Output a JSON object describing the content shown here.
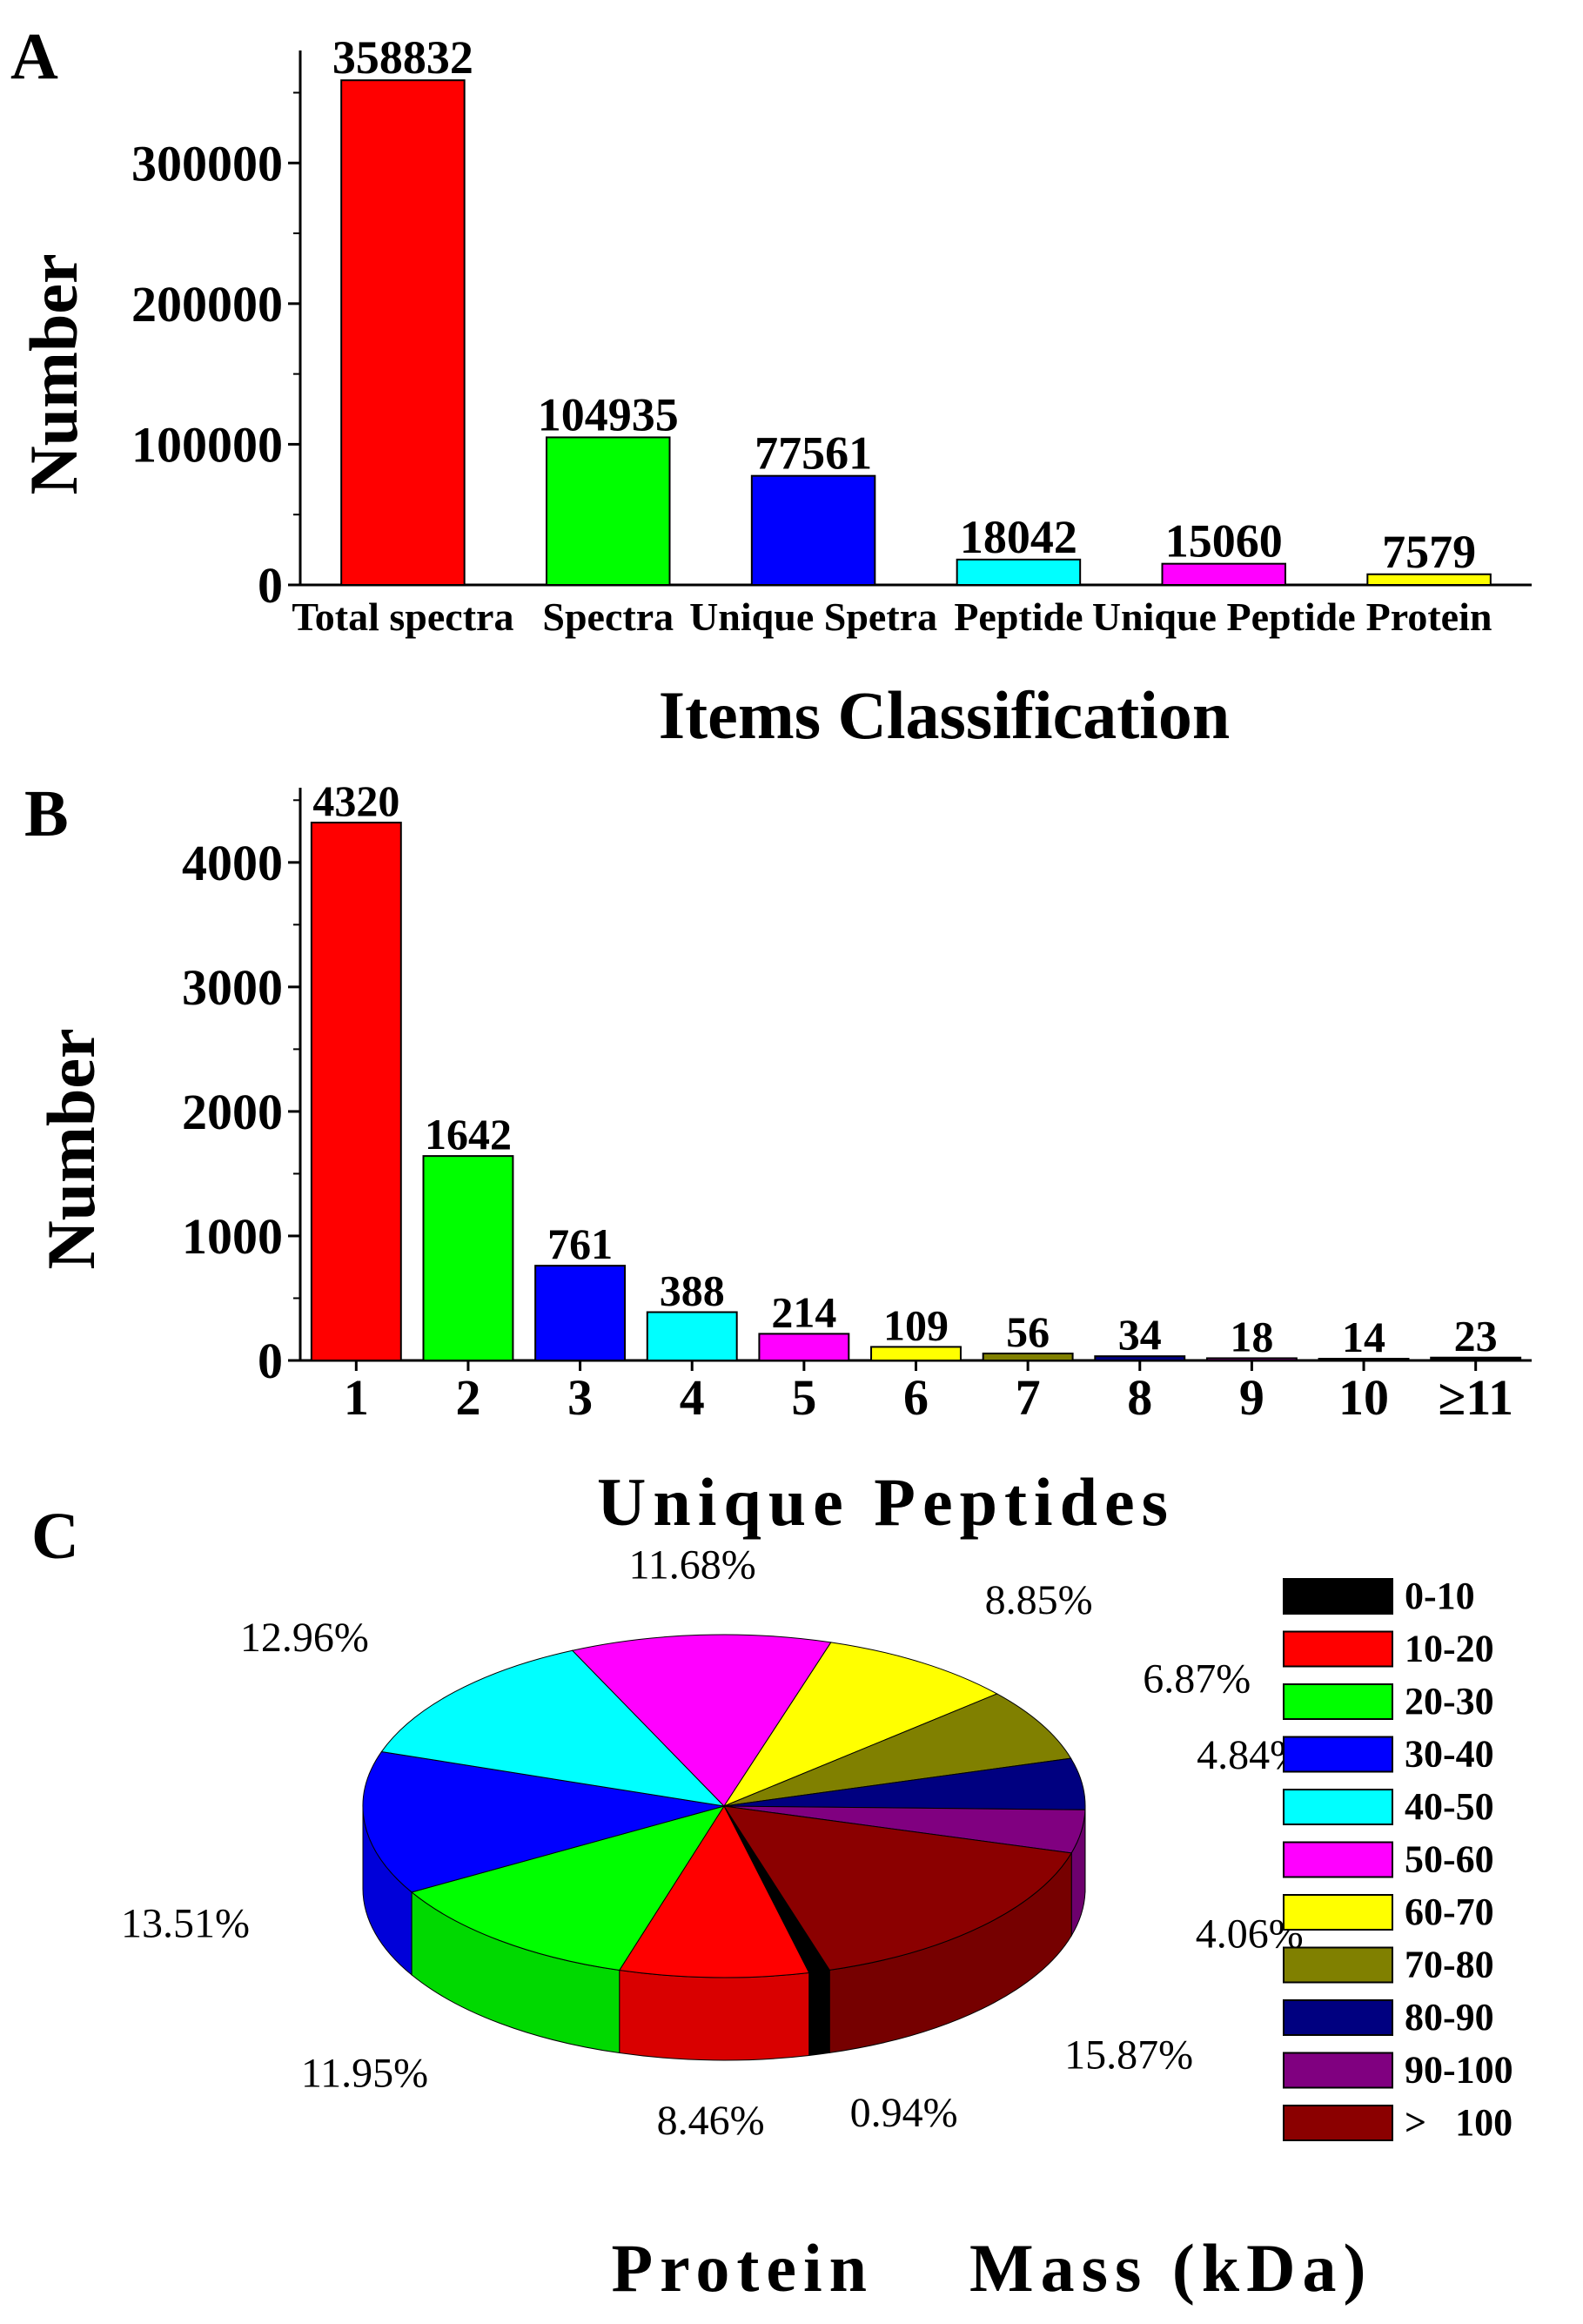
{
  "chart_data": [
    {
      "panel": "A",
      "type": "bar",
      "title": "",
      "xlabel": "Items Classification",
      "ylabel": "Number",
      "ylim": [
        0,
        380000
      ],
      "yticks": [
        "0",
        "100000",
        "200000",
        "300000"
      ],
      "categories": [
        "Total spectra",
        "Spectra",
        "Unique Spetra",
        "Peptide",
        "Unique Peptide",
        "Protein"
      ],
      "values": [
        358832,
        104935,
        77561,
        18042,
        15060,
        7579
      ],
      "value_labels": [
        "358832",
        "104935",
        "77561",
        "18042",
        "15060",
        "7579"
      ],
      "colors": [
        "#ff0000",
        "#00ff00",
        "#0000ff",
        "#00ffff",
        "#ff00ff",
        "#ffff00"
      ]
    },
    {
      "panel": "B",
      "type": "bar",
      "title": "",
      "xlabel": "Unique Peptides",
      "ylabel": "Number",
      "ylim": [
        0,
        4600
      ],
      "yticks": [
        "0",
        "1000",
        "2000",
        "3000",
        "4000"
      ],
      "categories": [
        "1",
        "2",
        "3",
        "4",
        "5",
        "6",
        "7",
        "8",
        "9",
        "10",
        "≥11"
      ],
      "values": [
        4320,
        1642,
        761,
        388,
        214,
        109,
        56,
        34,
        18,
        14,
        23
      ],
      "value_labels": [
        "4320",
        "1642",
        "761",
        "388",
        "214",
        "109",
        "56",
        "34",
        "18",
        "14",
        "23"
      ],
      "colors": [
        "#ff0000",
        "#00ff00",
        "#0000ff",
        "#00ffff",
        "#ff00ff",
        "#ffff00",
        "#808000",
        "#000080",
        "#800080",
        "#800000",
        "#000000"
      ]
    },
    {
      "panel": "C",
      "type": "pie",
      "title": "",
      "xlabel": "Protein    Mass (kDa)",
      "legend_position": "right",
      "slices": [
        {
          "label": "0-10",
          "value": 0.94,
          "percent_label": "0.94%",
          "color": "#000000"
        },
        {
          "label": "10-20",
          "value": 8.46,
          "percent_label": "8.46%",
          "color": "#ff0000"
        },
        {
          "label": "20-30",
          "value": 11.95,
          "percent_label": "11.95%",
          "color": "#00ff00"
        },
        {
          "label": "30-40",
          "value": 13.51,
          "percent_label": "13.51%",
          "color": "#0000ff"
        },
        {
          "label": "40-50",
          "value": 12.96,
          "percent_label": "12.96%",
          "color": "#00ffff"
        },
        {
          "label": "50-60",
          "value": 11.68,
          "percent_label": "11.68%",
          "color": "#ff00ff"
        },
        {
          "label": "60-70",
          "value": 8.85,
          "percent_label": "8.85%",
          "color": "#ffff00"
        },
        {
          "label": "70-80",
          "value": 6.87,
          "percent_label": "6.87%",
          "color": "#808000"
        },
        {
          "label": "80-90",
          "value": 4.84,
          "percent_label": "4.84%",
          "color": "#000080"
        },
        {
          "label": "90-100",
          "value": 4.06,
          "percent_label": "4.06%",
          "color": "#800080"
        },
        {
          "label": ">   100",
          "value": 15.87,
          "percent_label": "15.87%",
          "color": "#8b0000"
        }
      ]
    }
  ],
  "panels": {
    "a": "A",
    "b": "B",
    "c": "C"
  }
}
